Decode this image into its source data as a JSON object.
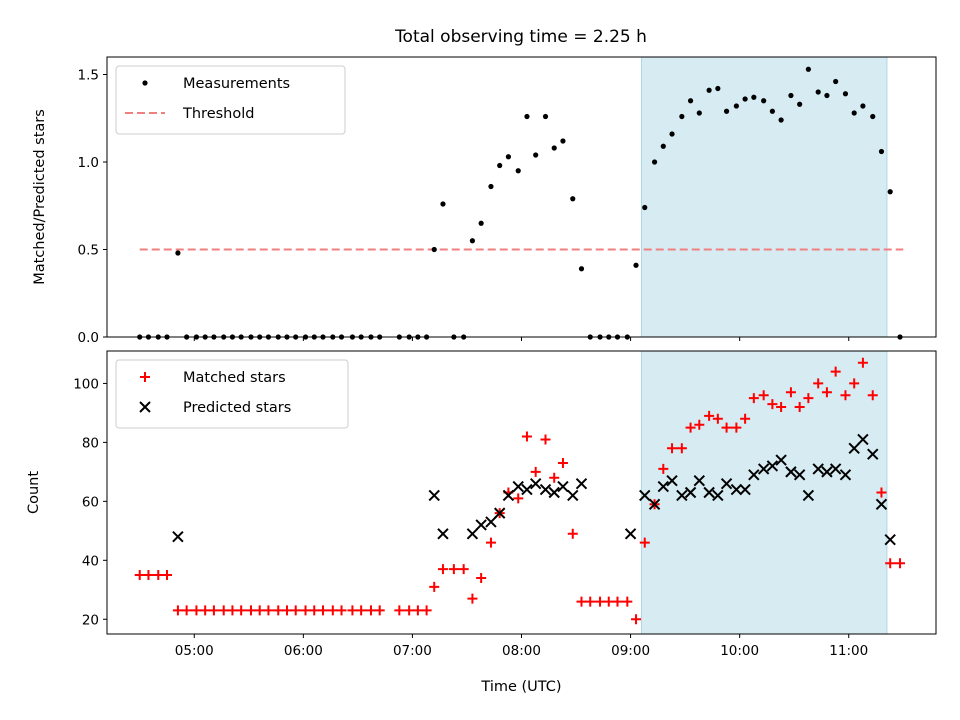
{
  "title": "Total observing time = 2.25 h",
  "chart_data": [
    {
      "type": "scatter",
      "ylabel": "Matched/Predicted stars",
      "xlim_hours": [
        4.2,
        11.8
      ],
      "ylim": [
        0,
        1.6
      ],
      "yticks": [
        0.0,
        0.5,
        1.0,
        1.5
      ],
      "ytick_labels": [
        "0.0",
        "0.5",
        "1.0",
        "1.5"
      ],
      "legend_position": "upper-left",
      "threshold": {
        "name": "Threshold",
        "value": 0.5,
        "x_range": [
          4.5,
          11.5
        ],
        "color": "#f08080",
        "style": "dashed"
      },
      "highlight_span": {
        "x_range": [
          9.1,
          11.35
        ],
        "color": "#add8e6"
      },
      "series": [
        {
          "name": "Measurements",
          "marker": "dot",
          "color": "#000000",
          "x": [
            4.5,
            4.58,
            4.67,
            4.75,
            4.85,
            4.93,
            5.02,
            5.1,
            5.18,
            5.27,
            5.35,
            5.43,
            5.52,
            5.6,
            5.68,
            5.77,
            5.85,
            5.93,
            6.02,
            6.1,
            6.18,
            6.27,
            6.35,
            6.45,
            6.53,
            6.62,
            6.7,
            6.88,
            6.97,
            7.05,
            7.13,
            7.2,
            7.28,
            7.38,
            7.47,
            7.55,
            7.63,
            7.72,
            7.8,
            7.88,
            7.97,
            8.05,
            8.13,
            8.22,
            8.3,
            8.38,
            8.47,
            8.55,
            8.63,
            8.72,
            8.8,
            8.88,
            8.97,
            9.05,
            9.13,
            9.22,
            9.3,
            9.38,
            9.47,
            9.55,
            9.63,
            9.72,
            9.8,
            9.88,
            9.97,
            10.05,
            10.13,
            10.22,
            10.3,
            10.38,
            10.47,
            10.55,
            10.63,
            10.72,
            10.8,
            10.88,
            10.97,
            11.05,
            11.13,
            11.22,
            11.3,
            11.38,
            11.47
          ],
          "y": [
            0,
            0,
            0,
            0,
            0.48,
            0,
            0,
            0,
            0,
            0,
            0,
            0,
            0,
            0,
            0,
            0,
            0,
            0,
            0,
            0,
            0,
            0,
            0,
            0,
            0,
            0,
            0,
            0,
            0,
            0,
            0,
            0.5,
            0.76,
            0,
            0,
            0.55,
            0.65,
            0.86,
            0.98,
            1.03,
            0.95,
            1.26,
            1.04,
            1.26,
            1.08,
            1.12,
            0.79,
            0.39,
            0,
            0,
            0,
            0,
            0,
            0.41,
            0.74,
            1.0,
            1.09,
            1.16,
            1.26,
            1.35,
            1.28,
            1.41,
            1.42,
            1.29,
            1.32,
            1.36,
            1.37,
            1.35,
            1.29,
            1.24,
            1.38,
            1.33,
            1.53,
            1.4,
            1.38,
            1.46,
            1.39,
            1.28,
            1.32,
            1.26,
            1.06,
            0.83,
            0
          ]
        }
      ]
    },
    {
      "type": "scatter",
      "xlabel": "Time (UTC)",
      "ylabel": "Count",
      "xlim_hours": [
        4.2,
        11.8
      ],
      "ylim": [
        15,
        111
      ],
      "yticks": [
        20,
        40,
        60,
        80,
        100
      ],
      "ytick_labels": [
        "20",
        "40",
        "60",
        "80",
        "100"
      ],
      "xticks_hours": [
        5,
        6,
        7,
        8,
        9,
        10,
        11
      ],
      "xtick_labels": [
        "05:00",
        "06:00",
        "07:00",
        "08:00",
        "09:00",
        "10:00",
        "11:00"
      ],
      "legend_position": "upper-left",
      "highlight_span": {
        "x_range": [
          9.1,
          11.35
        ],
        "color": "#add8e6"
      },
      "series": [
        {
          "name": "Matched stars",
          "marker": "plus",
          "color": "#ff0000",
          "x": [
            4.5,
            4.58,
            4.67,
            4.75,
            4.85,
            4.93,
            5.02,
            5.1,
            5.18,
            5.27,
            5.35,
            5.43,
            5.52,
            5.6,
            5.68,
            5.77,
            5.85,
            5.93,
            6.02,
            6.1,
            6.18,
            6.27,
            6.35,
            6.45,
            6.53,
            6.62,
            6.7,
            6.88,
            6.97,
            7.05,
            7.13,
            7.2,
            7.28,
            7.38,
            7.47,
            7.55,
            7.63,
            7.72,
            7.8,
            7.88,
            7.97,
            8.05,
            8.13,
            8.22,
            8.3,
            8.38,
            8.47,
            8.55,
            8.63,
            8.72,
            8.8,
            8.88,
            8.97,
            9.05,
            9.13,
            9.22,
            9.3,
            9.38,
            9.47,
            9.55,
            9.63,
            9.72,
            9.8,
            9.88,
            9.97,
            10.05,
            10.13,
            10.22,
            10.3,
            10.38,
            10.47,
            10.55,
            10.63,
            10.72,
            10.8,
            10.88,
            10.97,
            11.05,
            11.13,
            11.22,
            11.3,
            11.38,
            11.47
          ],
          "y": [
            35,
            35,
            35,
            35,
            23,
            23,
            23,
            23,
            23,
            23,
            23,
            23,
            23,
            23,
            23,
            23,
            23,
            23,
            23,
            23,
            23,
            23,
            23,
            23,
            23,
            23,
            23,
            23,
            23,
            23,
            23,
            31,
            37,
            37,
            37,
            27,
            34,
            46,
            56,
            63,
            61,
            82,
            70,
            81,
            68,
            73,
            49,
            26,
            26,
            26,
            26,
            26,
            26,
            20,
            46,
            59,
            71,
            78,
            78,
            85,
            86,
            89,
            88,
            85,
            85,
            88,
            95,
            96,
            93,
            92,
            97,
            92,
            95,
            100,
            97,
            104,
            96,
            100,
            107,
            96,
            63,
            39,
            39
          ]
        },
        {
          "name": "Predicted stars",
          "marker": "x",
          "color": "#000000",
          "x": [
            4.85,
            7.2,
            7.28,
            7.55,
            7.63,
            7.72,
            7.8,
            7.88,
            7.97,
            8.05,
            8.13,
            8.22,
            8.3,
            8.38,
            8.47,
            8.55,
            9.0,
            9.13,
            9.22,
            9.3,
            9.38,
            9.47,
            9.55,
            9.63,
            9.72,
            9.8,
            9.88,
            9.97,
            10.05,
            10.13,
            10.22,
            10.3,
            10.38,
            10.47,
            10.55,
            10.63,
            10.72,
            10.8,
            10.88,
            10.97,
            11.05,
            11.13,
            11.22,
            11.3,
            11.38
          ],
          "y": [
            48,
            62,
            49,
            49,
            52,
            53,
            56,
            62,
            65,
            64,
            66,
            64,
            63,
            65,
            62,
            66,
            49,
            62,
            59,
            65,
            67,
            62,
            63,
            67,
            63,
            62,
            66,
            64,
            64,
            69,
            71,
            72,
            74,
            70,
            69,
            62,
            71,
            70,
            71,
            69,
            78,
            81,
            76,
            59,
            47
          ]
        }
      ]
    }
  ]
}
